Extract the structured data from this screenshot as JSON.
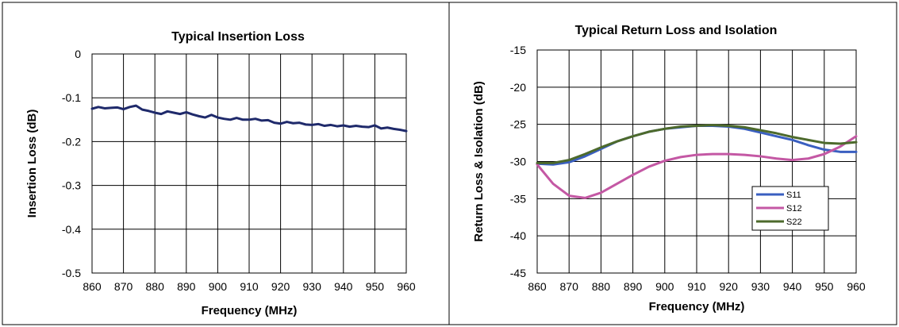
{
  "chart_data": [
    {
      "type": "line",
      "title": "Typical Insertion Loss",
      "xlabel": "Frequency (MHz)",
      "ylabel": "Insertion Loss (dB)",
      "xlim": [
        860,
        960
      ],
      "ylim": [
        -0.5,
        0
      ],
      "x_ticks": [
        "860",
        "870",
        "880",
        "890",
        "900",
        "910",
        "920",
        "930",
        "940",
        "950",
        "960"
      ],
      "y_ticks": [
        "0",
        "-0.1",
        "-0.2",
        "-0.3",
        "-0.4",
        "-0.5"
      ],
      "grid": true,
      "legend": "none",
      "series": [
        {
          "color": "#1f2a6b",
          "x": [
            860,
            862,
            864,
            866,
            868,
            870,
            872,
            874,
            876,
            878,
            880,
            882,
            884,
            886,
            888,
            890,
            892,
            894,
            896,
            898,
            900,
            902,
            904,
            906,
            908,
            910,
            912,
            914,
            916,
            918,
            920,
            922,
            924,
            926,
            928,
            930,
            932,
            934,
            936,
            938,
            940,
            942,
            944,
            946,
            948,
            950,
            952,
            954,
            956,
            958,
            960
          ],
          "values": [
            -0.125,
            -0.121,
            -0.124,
            -0.123,
            -0.122,
            -0.126,
            -0.121,
            -0.118,
            -0.127,
            -0.13,
            -0.134,
            -0.137,
            -0.131,
            -0.134,
            -0.137,
            -0.133,
            -0.138,
            -0.142,
            -0.145,
            -0.139,
            -0.145,
            -0.148,
            -0.15,
            -0.146,
            -0.15,
            -0.15,
            -0.148,
            -0.152,
            -0.151,
            -0.157,
            -0.159,
            -0.155,
            -0.158,
            -0.157,
            -0.161,
            -0.162,
            -0.16,
            -0.164,
            -0.162,
            -0.165,
            -0.163,
            -0.166,
            -0.164,
            -0.166,
            -0.167,
            -0.163,
            -0.17,
            -0.168,
            -0.171,
            -0.173,
            -0.176
          ]
        }
      ]
    },
    {
      "type": "line",
      "title": "Typical Return Loss and Isolation",
      "xlabel": "Frequency (MHz)",
      "ylabel": "Return Loss & Isolation (dB)",
      "xlim": [
        860,
        960
      ],
      "ylim": [
        -45,
        -15
      ],
      "x_ticks": [
        "860",
        "870",
        "880",
        "890",
        "900",
        "910",
        "920",
        "930",
        "940",
        "950",
        "960"
      ],
      "y_ticks": [
        "-15",
        "-20",
        "-25",
        "-30",
        "-35",
        "-40",
        "-45"
      ],
      "grid": true,
      "legend": "bottom-right",
      "series": [
        {
          "name": "S11",
          "color": "#3a5fc0",
          "x": [
            860,
            865,
            870,
            875,
            880,
            885,
            890,
            895,
            900,
            905,
            910,
            915,
            920,
            925,
            930,
            935,
            940,
            945,
            950,
            955,
            960
          ],
          "values": [
            -30.3,
            -30.4,
            -30.1,
            -29.3,
            -28.3,
            -27.3,
            -26.6,
            -26.0,
            -25.6,
            -25.4,
            -25.2,
            -25.2,
            -25.3,
            -25.6,
            -26.1,
            -26.6,
            -27.1,
            -27.8,
            -28.4,
            -28.7,
            -28.7
          ]
        },
        {
          "name": "S12",
          "color": "#c458a4",
          "x": [
            860,
            865,
            870,
            875,
            880,
            885,
            890,
            895,
            900,
            905,
            910,
            915,
            920,
            925,
            930,
            935,
            940,
            945,
            950,
            955,
            960
          ],
          "values": [
            -30.4,
            -33.0,
            -34.6,
            -34.9,
            -34.2,
            -33.0,
            -31.8,
            -30.7,
            -29.9,
            -29.4,
            -29.1,
            -29.0,
            -29.0,
            -29.1,
            -29.3,
            -29.6,
            -29.8,
            -29.6,
            -29.0,
            -28.0,
            -26.6
          ]
        },
        {
          "name": "S22",
          "color": "#4d6a2c",
          "x": [
            860,
            865,
            870,
            875,
            880,
            885,
            890,
            895,
            900,
            905,
            910,
            915,
            920,
            925,
            930,
            935,
            940,
            945,
            950,
            955,
            960
          ],
          "values": [
            -30.2,
            -30.2,
            -29.8,
            -29.0,
            -28.1,
            -27.3,
            -26.6,
            -26.0,
            -25.6,
            -25.3,
            -25.2,
            -25.1,
            -25.2,
            -25.4,
            -25.8,
            -26.2,
            -26.7,
            -27.1,
            -27.5,
            -27.6,
            -27.4
          ]
        }
      ]
    }
  ]
}
